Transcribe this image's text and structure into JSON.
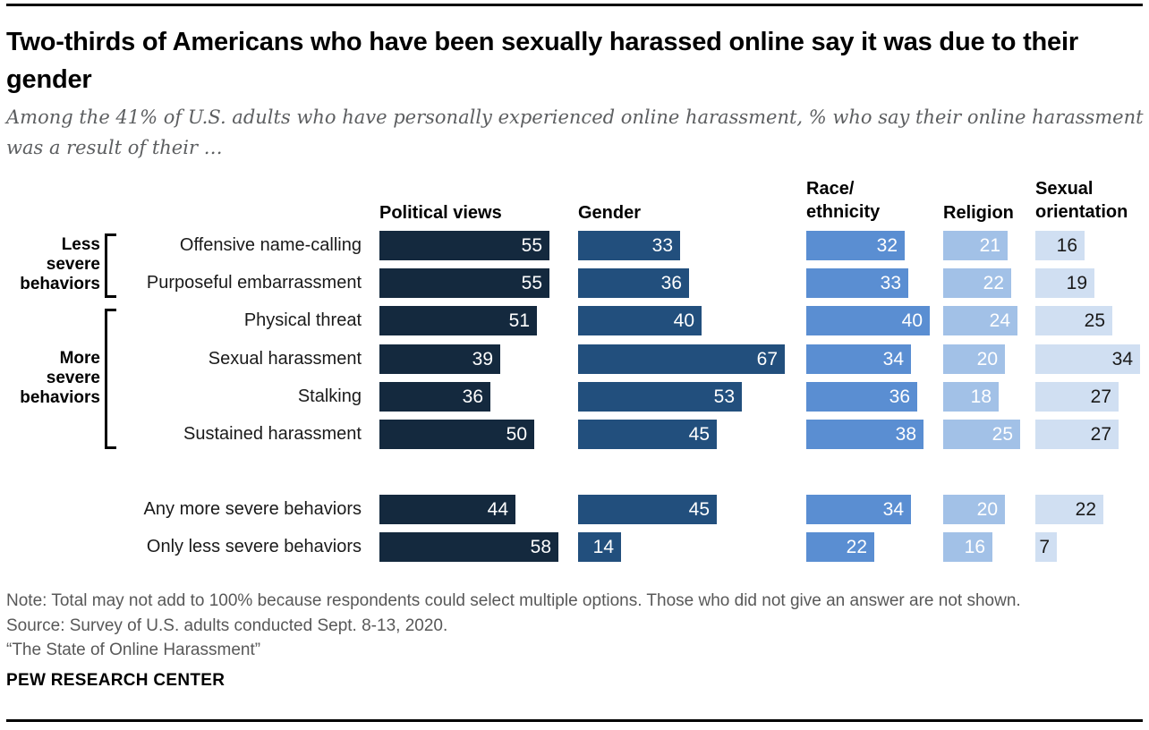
{
  "header": {
    "title": "Two-thirds of Americans who have been sexually harassed online say it was due to their gender",
    "subtitle": "Among the 41% of U.S. adults who have personally experienced online harassment, % who say their online harassment was a result of their …"
  },
  "chart_data": {
    "type": "bar",
    "title": "Two-thirds of Americans who have been sexually harassed online say it was due to their gender",
    "unit": "%",
    "xlim": [
      0,
      70
    ],
    "value_labels": true,
    "columns": [
      {
        "label": "Political views",
        "color": "#14293e",
        "value_color": "#ffffff"
      },
      {
        "label": "Gender",
        "color": "#224f7d",
        "value_color": "#ffffff"
      },
      {
        "label": "Race/\nethnicity",
        "color": "#5a8ed2",
        "value_color": "#ffffff"
      },
      {
        "label": "Religion",
        "color": "#a2c1e7",
        "value_color": "#ffffff"
      },
      {
        "label": "Sexual\norientation",
        "color": "#d0dff2",
        "value_color": "#1a1a1a"
      }
    ],
    "rows": [
      {
        "label": "Offensive name-calling",
        "values": [
          55,
          33,
          32,
          21,
          16
        ]
      },
      {
        "label": "Purposeful embarrassment",
        "values": [
          55,
          36,
          33,
          22,
          19
        ]
      },
      {
        "label": "Physical threat",
        "values": [
          51,
          40,
          40,
          24,
          25
        ]
      },
      {
        "label": "Sexual harassment",
        "values": [
          39,
          67,
          34,
          20,
          34
        ]
      },
      {
        "label": "Stalking",
        "values": [
          36,
          53,
          36,
          18,
          27
        ]
      },
      {
        "label": "Sustained harassment",
        "values": [
          50,
          45,
          38,
          25,
          27
        ]
      },
      {
        "label": "Any more severe behaviors",
        "values": [
          44,
          45,
          34,
          20,
          22
        ]
      },
      {
        "label": "Only less severe behaviors",
        "values": [
          58,
          14,
          22,
          16,
          7
        ]
      }
    ],
    "groups": [
      {
        "label": "Less\nsevere\nbehaviors",
        "first_row": 0,
        "last_row": 1
      },
      {
        "label": "More\nsevere\nbehaviors",
        "first_row": 2,
        "last_row": 5
      }
    ]
  },
  "footer": {
    "note": "Note: Total may not add to 100% because respondents could select multiple options. Those who did not give an answer are not shown.",
    "source": "Source: Survey of U.S. adults conducted Sept. 8-13, 2020.",
    "report": "“The State of Online Harassment”",
    "brand": "PEW RESEARCH CENTER"
  }
}
